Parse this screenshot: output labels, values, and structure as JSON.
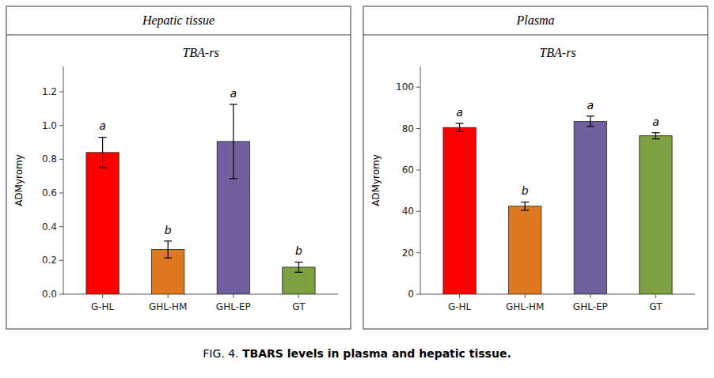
{
  "chart_data": [
    {
      "type": "bar",
      "title": "Hepatic tissue",
      "subtitle": "TBA-rs",
      "y_label": "ADMyromy",
      "categories": [
        "G-HL",
        "GHL-HM",
        "GHL-EP",
        "GT"
      ],
      "values": [
        0.84,
        0.265,
        0.905,
        0.16
      ],
      "errors": [
        0.09,
        0.05,
        0.22,
        0.03
      ],
      "letters": [
        "a",
        "b",
        "a",
        "b"
      ],
      "colors": [
        "#ff0000",
        "#e07820",
        "#7060a0",
        "#7da040"
      ],
      "ylim": [
        0,
        1.35
      ],
      "yticks": [
        {
          "value": 0,
          "label": "0.0"
        },
        0.2,
        0.4,
        0.6,
        0.8,
        {
          "value": 1,
          "label": "1.0"
        },
        1.2
      ],
      "grid": false
    },
    {
      "type": "bar",
      "title": "Plasma",
      "subtitle": "TBA-rs",
      "y_label": "ADMyromy",
      "categories": [
        "G-HL",
        "GHL-HM",
        "GHL-EP",
        "GT"
      ],
      "values": [
        80.5,
        42.5,
        83.5,
        76.5
      ],
      "errors": [
        2.0,
        2.0,
        2.5,
        1.5
      ],
      "letters": [
        "a",
        "b",
        "a",
        "a"
      ],
      "colors": [
        "#ff0000",
        "#e07820",
        "#7060a0",
        "#7da040"
      ],
      "ylim": [
        0,
        110
      ],
      "yticks": [
        0,
        20,
        40,
        60,
        80,
        100
      ],
      "grid": false
    }
  ],
  "caption": {
    "prefix": "FIG. 4. ",
    "text": "TBARS levels in plasma and hepatic tissue."
  }
}
